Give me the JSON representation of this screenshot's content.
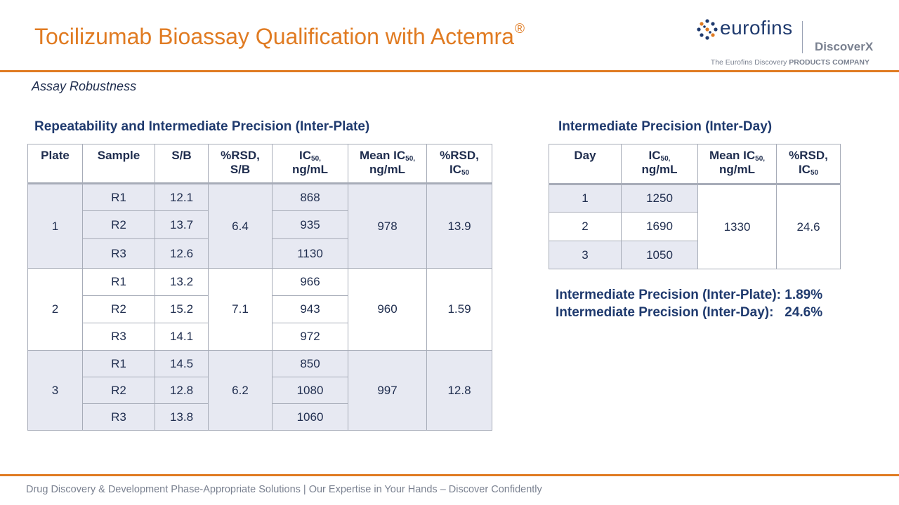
{
  "title": {
    "text": "Tocilizumab Bioassay Qualification with Actemra",
    "sup": "®"
  },
  "logo": {
    "name": "eurofins",
    "sub": "DiscoverX",
    "tagline_plain": "The Eurofins Discovery ",
    "tagline_bold": "PRODUCTS COMPANY",
    "color": "#1f3a6e"
  },
  "section_label": "Assay Robustness",
  "left_table": {
    "heading": "Repeatability and Intermediate Precision (Inter-Plate)",
    "headers": {
      "plate": "Plate",
      "sample": "Sample",
      "sb": "S/B",
      "rsd_sb_1": "%RSD,",
      "rsd_sb_2": "S/B",
      "ic50_a": "IC",
      "ic50_sub": "50,",
      "ic50_b": "ng/mL",
      "mean_a": "Mean IC",
      "mean_sub": "50,",
      "mean_b": "ng/mL",
      "rsd_ic_1": "%RSD,",
      "rsd_ic_2": "IC",
      "rsd_ic_sub": "50"
    },
    "plates": [
      {
        "plate": "1",
        "rsd_sb": "6.4",
        "mean_ic50": "978",
        "rsd_ic50": "13.9",
        "rows": [
          {
            "sample": "R1",
            "sb": "12.1",
            "ic50": "868"
          },
          {
            "sample": "R2",
            "sb": "13.7",
            "ic50": "935"
          },
          {
            "sample": "R3",
            "sb": "12.6",
            "ic50": "1130"
          }
        ]
      },
      {
        "plate": "2",
        "rsd_sb": "7.1",
        "mean_ic50": "960",
        "rsd_ic50": "1.59",
        "rows": [
          {
            "sample": "R1",
            "sb": "13.2",
            "ic50": "966"
          },
          {
            "sample": "R2",
            "sb": "15.2",
            "ic50": "943"
          },
          {
            "sample": "R3",
            "sb": "14.1",
            "ic50": "972"
          }
        ]
      },
      {
        "plate": "3",
        "rsd_sb": "6.2",
        "mean_ic50": "997",
        "rsd_ic50": "12.8",
        "rows": [
          {
            "sample": "R1",
            "sb": "14.5",
            "ic50": "850"
          },
          {
            "sample": "R2",
            "sb": "12.8",
            "ic50": "1080"
          },
          {
            "sample": "R3",
            "sb": "13.8",
            "ic50": "1060"
          }
        ]
      }
    ]
  },
  "right_table": {
    "heading": "Intermediate Precision (Inter-Day)",
    "headers": {
      "day": "Day",
      "ic50_a": "IC",
      "ic50_sub": "50,",
      "ic50_b": "ng/mL",
      "mean_a": "Mean IC",
      "mean_sub": "50,",
      "mean_b": "ng/mL",
      "rsd_1": "%RSD,",
      "rsd_2": "IC",
      "rsd_sub": "50"
    },
    "mean_ic50": "1330",
    "rsd_ic50": "24.6",
    "rows": [
      {
        "day": "1",
        "ic50": "1250"
      },
      {
        "day": "2",
        "ic50": "1690"
      },
      {
        "day": "3",
        "ic50": "1050"
      }
    ]
  },
  "summary": {
    "line1": "Intermediate Precision (Inter-Plate): 1.89%",
    "line2": "Intermediate Precision (Inter-Day):   24.6%"
  },
  "footer": "Drug Discovery & Development Phase-Appropriate Solutions | Our Expertise in Your Hands – Discover Confidently",
  "colors": {
    "accent": "#e07b22",
    "text": "#1f2d4e",
    "shade": "#e7e9f2",
    "border": "#a7acb8"
  }
}
